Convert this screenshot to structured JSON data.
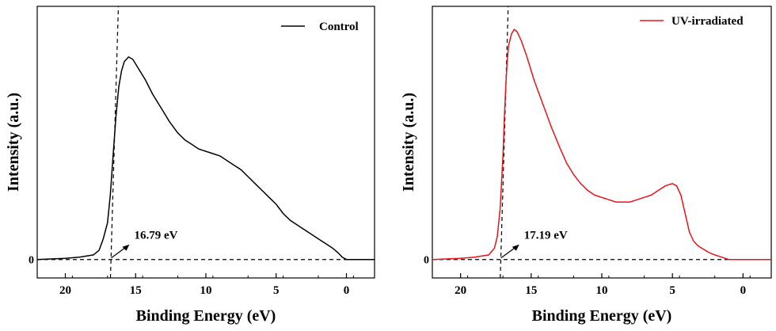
{
  "chart_data": [
    {
      "type": "line",
      "xlabel": "Binding Energy (eV)",
      "ylabel": "Intensity (a.u.)",
      "xlim": [
        22,
        -2
      ],
      "x_reversed": true,
      "ylim": [
        -0.08,
        1.1
      ],
      "xticks": [
        20,
        15,
        10,
        5,
        0
      ],
      "yticks": [
        0
      ],
      "ytick_labels": [
        "0"
      ],
      "grid": false,
      "legend": "top-right",
      "series": [
        {
          "name": "Control",
          "color": "#000000",
          "x": [
            22,
            20,
            19,
            18,
            17.6,
            17.3,
            17.0,
            16.8,
            16.6,
            16.4,
            16.2,
            16.0,
            15.8,
            15.5,
            15.2,
            14.8,
            14.3,
            13.8,
            13.2,
            12.6,
            12.0,
            11.5,
            11.0,
            10.5,
            10.0,
            9.5,
            9.0,
            8.5,
            8.0,
            7.5,
            7.0,
            6.5,
            6.0,
            5.5,
            5.0,
            4.5,
            4.0,
            3.5,
            3.0,
            2.5,
            2.0,
            1.5,
            1.0,
            0.6,
            0.3,
            0.0,
            -1,
            -2
          ],
          "y": [
            0.0,
            0.005,
            0.01,
            0.02,
            0.04,
            0.09,
            0.16,
            0.28,
            0.45,
            0.62,
            0.75,
            0.82,
            0.86,
            0.88,
            0.87,
            0.83,
            0.78,
            0.72,
            0.66,
            0.6,
            0.55,
            0.52,
            0.5,
            0.48,
            0.47,
            0.46,
            0.45,
            0.43,
            0.41,
            0.39,
            0.36,
            0.33,
            0.3,
            0.27,
            0.24,
            0.2,
            0.17,
            0.15,
            0.13,
            0.11,
            0.09,
            0.07,
            0.05,
            0.03,
            0.01,
            0.0,
            0.0,
            0.0
          ]
        },
        {
          "name": "UV-irradiated",
          "color": "#e8141b",
          "x": [
            22,
            20,
            19,
            18,
            17.6,
            17.4,
            17.2,
            17.0,
            16.9,
            16.8,
            16.7,
            16.6,
            16.4,
            16.2,
            16.0,
            15.7,
            15.3,
            14.8,
            14.2,
            13.6,
            13.0,
            12.5,
            12.0,
            11.5,
            11.0,
            10.5,
            10.0,
            9.5,
            9.0,
            8.5,
            8.0,
            7.5,
            7.0,
            6.5,
            6.0,
            5.5,
            5.0,
            4.7,
            4.4,
            4.1,
            3.8,
            3.5,
            3.2,
            2.8,
            2.4,
            2.0,
            1.5,
            1.0,
            0.5,
            0.0,
            -1,
            -2
          ],
          "y": [
            0.0,
            0.005,
            0.01,
            0.02,
            0.05,
            0.1,
            0.22,
            0.45,
            0.62,
            0.75,
            0.86,
            0.93,
            0.98,
            1.0,
            0.99,
            0.95,
            0.88,
            0.78,
            0.68,
            0.58,
            0.49,
            0.42,
            0.37,
            0.33,
            0.3,
            0.28,
            0.27,
            0.26,
            0.25,
            0.25,
            0.25,
            0.26,
            0.27,
            0.28,
            0.3,
            0.32,
            0.33,
            0.32,
            0.28,
            0.2,
            0.12,
            0.08,
            0.06,
            0.045,
            0.03,
            0.02,
            0.01,
            0.0,
            0.0,
            0.0,
            0.0,
            0.0
          ]
        }
      ],
      "annotations": [
        {
          "name": "cutoff-control",
          "text": "16.79 eV",
          "x": 16.79
        }
      ]
    }
  ],
  "panels": [
    {
      "series_index": 0,
      "cutoff": 16.79,
      "cutoff_label": "16.79 eV"
    },
    {
      "series_index": 1,
      "cutoff": 17.19,
      "cutoff_label": "17.19 eV"
    }
  ]
}
